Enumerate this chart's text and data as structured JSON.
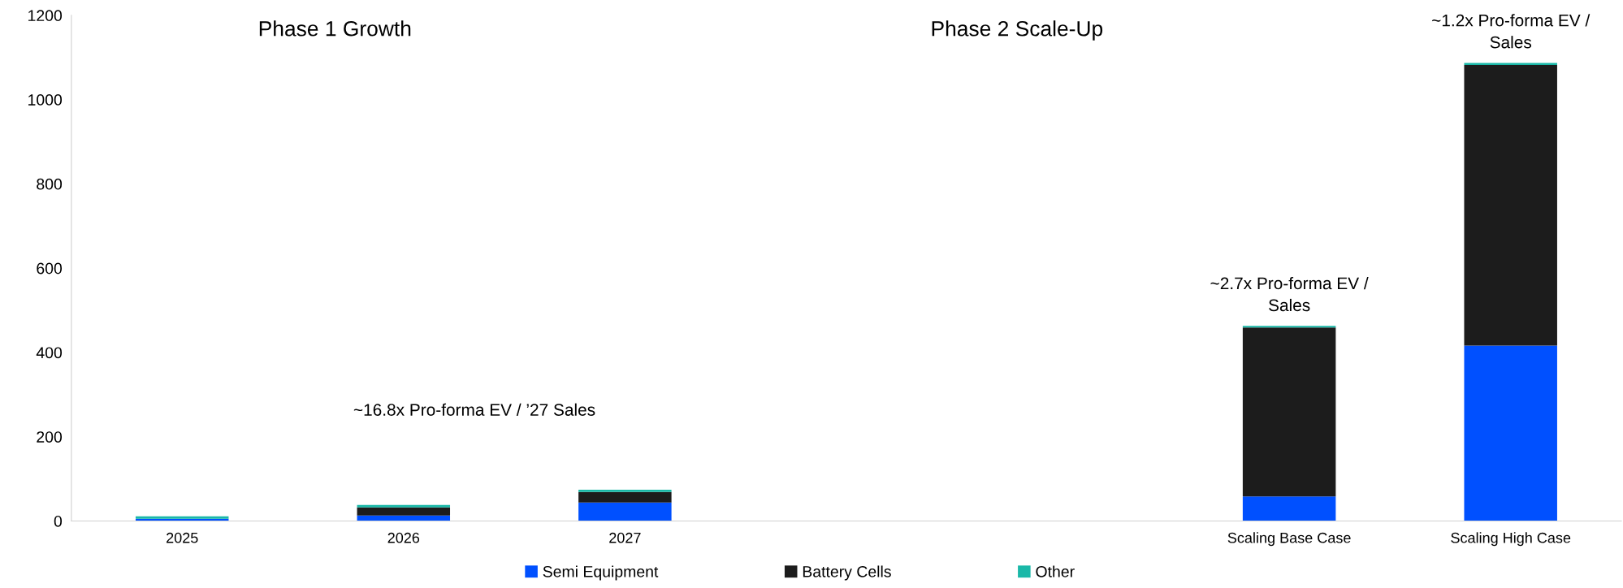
{
  "chart_data": {
    "type": "bar",
    "stacked": true,
    "categories": [
      "2025",
      "2026",
      "2027",
      null,
      null,
      "Scaling Base Case",
      "Scaling High Case"
    ],
    "series": [
      {
        "name": "Semi Equipment",
        "color": "#0050ff",
        "values": [
          5,
          13,
          44,
          null,
          null,
          58,
          416
        ]
      },
      {
        "name": "Battery Cells",
        "color": "#1c1c1c",
        "values": [
          null,
          19,
          25,
          null,
          null,
          401,
          666
        ]
      },
      {
        "name": "Other",
        "color": "#1ab8a8",
        "values": [
          6,
          6,
          5,
          null,
          null,
          4,
          5
        ]
      }
    ],
    "ylim": [
      0,
      1200
    ],
    "yticks": [
      0,
      200,
      400,
      600,
      800,
      1000,
      1200
    ],
    "grid": false,
    "legend": "bottom",
    "annotations": [
      "Phase 1 Growth",
      "Phase 2 Scale-Up",
      "~16.8x Pro-forma EV / ’27 Sales",
      {
        "text": "~2.7x Pro-forma EV /\nSales",
        "x": "Scaling Base Case",
        "y": 463
      },
      {
        "text": "~1.2x Pro-forma EV /\nSales",
        "x": "Scaling High Case",
        "y": 1087
      }
    ]
  }
}
